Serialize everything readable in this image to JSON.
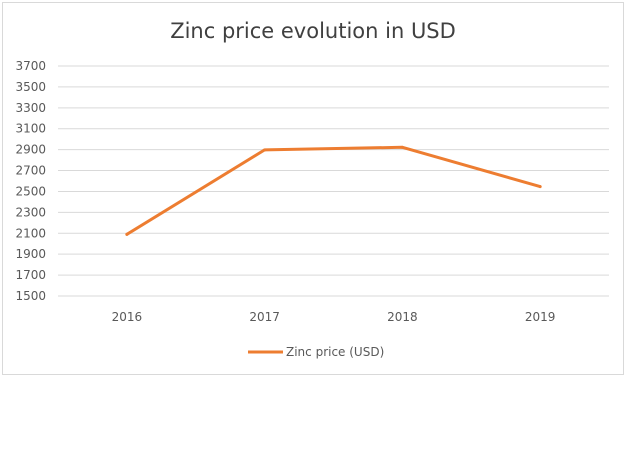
{
  "chart_data": {
    "type": "line",
    "title": "Zinc price evolution in USD",
    "categories": [
      "2016",
      "2017",
      "2018",
      "2019"
    ],
    "series": [
      {
        "name": "Zinc price (USD)",
        "values": [
          2090,
          2897,
          2922,
          2546
        ],
        "color": "#ed7d31"
      }
    ],
    "ylim": [
      1500,
      3700
    ],
    "yticks": [
      1500,
      1700,
      1900,
      2100,
      2300,
      2500,
      2700,
      2900,
      3100,
      3300,
      3500,
      3700
    ],
    "grid": true,
    "legend_position": "bottom"
  }
}
